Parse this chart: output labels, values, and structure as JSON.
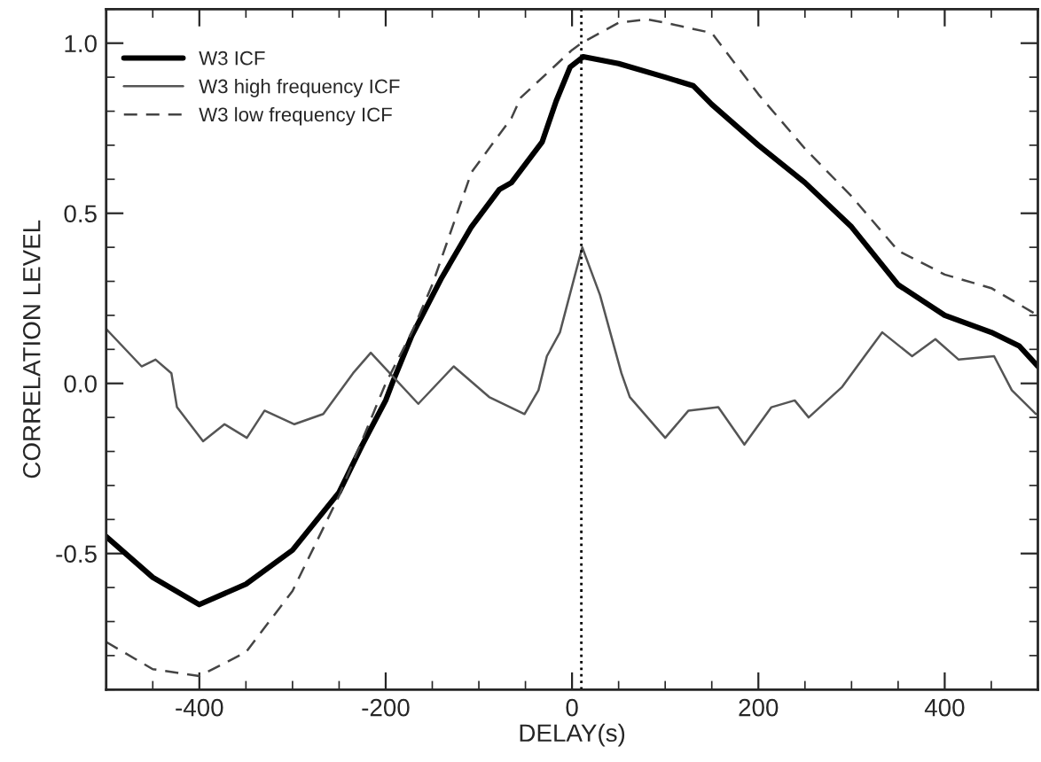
{
  "chart_data": {
    "type": "line",
    "xlabel": "DELAY(s)",
    "ylabel": "CORRELATION LEVEL",
    "xlim": [
      -500,
      500
    ],
    "ylim": [
      -0.9,
      1.1
    ],
    "xticks": [
      -400,
      -200,
      0,
      200,
      400
    ],
    "yticks": [
      {
        "value": -0.5,
        "label": "-0.5"
      },
      {
        "value": 0,
        "label": "0.0"
      },
      {
        "value": 0.5,
        "label": "0.5"
      },
      {
        "value": 1.0,
        "label": "1.0"
      }
    ],
    "grid": false,
    "legend": "top left",
    "marker": "none",
    "ref_lines": [
      {
        "axis": "x",
        "value": 10,
        "line_style": "dotted",
        "color": "#000000"
      }
    ],
    "series": [
      {
        "name": "W3 ICF",
        "color": "#000000",
        "line_style": "solid",
        "x": [
          -500,
          -450,
          -400,
          -350,
          -300,
          -250,
          -225,
          -200,
          -193,
          -172,
          -140,
          -108,
          -78,
          -65,
          -32,
          -17,
          -2,
          12,
          50,
          100,
          130,
          150,
          200,
          250,
          300,
          350,
          400,
          450,
          480,
          500
        ],
        "values": [
          -0.45,
          -0.57,
          -0.65,
          -0.59,
          -0.49,
          -0.32,
          -0.18,
          -0.05,
          0.0,
          0.14,
          0.31,
          0.46,
          0.57,
          0.59,
          0.71,
          0.83,
          0.93,
          0.96,
          0.94,
          0.9,
          0.875,
          0.82,
          0.7,
          0.59,
          0.46,
          0.29,
          0.2,
          0.15,
          0.11,
          0.05
        ]
      },
      {
        "name": "W3 high frequency ICF",
        "color": "#555555",
        "line_style": "solid",
        "x": [
          -500,
          -462,
          -447,
          -430,
          -424,
          -396,
          -373,
          -349,
          -330,
          -298,
          -267,
          -235,
          -216,
          -165,
          -127,
          -89,
          -51,
          -36,
          -27,
          -13,
          11,
          30,
          53,
          62,
          100,
          125,
          157,
          185,
          214,
          239,
          254,
          290,
          314,
          333,
          365,
          390,
          415,
          453,
          472,
          498
        ],
        "values": [
          0.16,
          0.05,
          0.07,
          0.03,
          -0.07,
          -0.17,
          -0.12,
          -0.16,
          -0.08,
          -0.12,
          -0.09,
          0.03,
          0.09,
          -0.06,
          0.05,
          -0.04,
          -0.09,
          -0.02,
          0.08,
          0.15,
          0.4,
          0.26,
          0.03,
          -0.04,
          -0.16,
          -0.08,
          -0.07,
          -0.18,
          -0.07,
          -0.05,
          -0.1,
          -0.01,
          0.08,
          0.15,
          0.08,
          0.13,
          0.07,
          0.08,
          -0.02,
          -0.09
        ]
      },
      {
        "name": "W3 low frequency ICF",
        "color": "#444444",
        "line_style": "dashed",
        "x": [
          -500,
          -450,
          -400,
          -350,
          -300,
          -250,
          -200,
          -172,
          -150,
          -108,
          -65,
          -55,
          0,
          10,
          50,
          80,
          100,
          150,
          200,
          250,
          300,
          350,
          400,
          450,
          500
        ],
        "values": [
          -0.76,
          -0.84,
          -0.86,
          -0.79,
          -0.61,
          -0.33,
          0.0,
          0.15,
          0.29,
          0.62,
          0.78,
          0.84,
          0.98,
          1.0,
          1.06,
          1.07,
          1.06,
          1.03,
          0.85,
          0.69,
          0.55,
          0.39,
          0.32,
          0.28,
          0.2
        ]
      }
    ]
  }
}
